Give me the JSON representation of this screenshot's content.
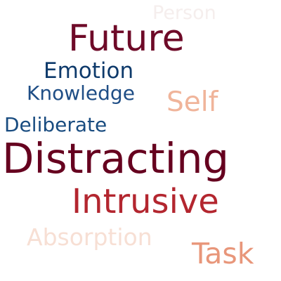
{
  "words": [
    {
      "text": "Person",
      "color": "#f5eeed"
    },
    {
      "text": "Future",
      "color": "#6e0a28"
    },
    {
      "text": "Emotion",
      "color": "#0e3a6b"
    },
    {
      "text": "Knowledge",
      "color": "#1f4e86"
    },
    {
      "text": "Self",
      "color": "#f0b49a"
    },
    {
      "text": "Deliberate",
      "color": "#194c80"
    },
    {
      "text": "Distracting",
      "color": "#66001f"
    },
    {
      "text": "Intrusive",
      "color": "#b3262f"
    },
    {
      "text": "Absorption",
      "color": "#f7dfd4"
    },
    {
      "text": "Task",
      "color": "#e8967a"
    }
  ]
}
